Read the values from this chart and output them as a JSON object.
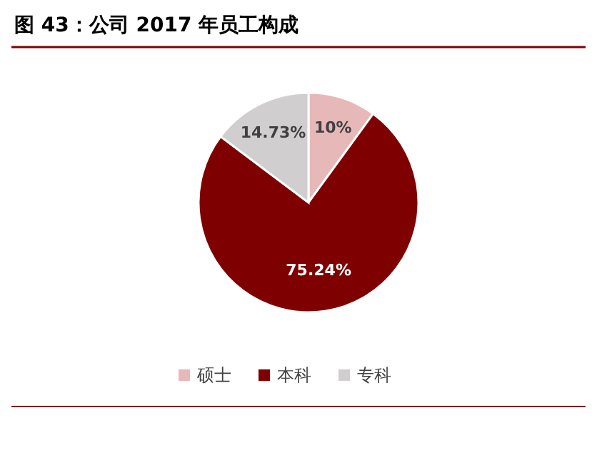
{
  "chart_data": {
    "type": "pie",
    "title": "图 43：公司 2017 年员工构成",
    "categories": [
      "硕士",
      "本科",
      "专科"
    ],
    "values": [
      10,
      75.24,
      14.73
    ],
    "colors": [
      "#e6b9b8",
      "#7f0000",
      "#d0cece"
    ],
    "value_labels": [
      "10%",
      "75.24%",
      "14.73%"
    ],
    "legend": "bottom"
  }
}
